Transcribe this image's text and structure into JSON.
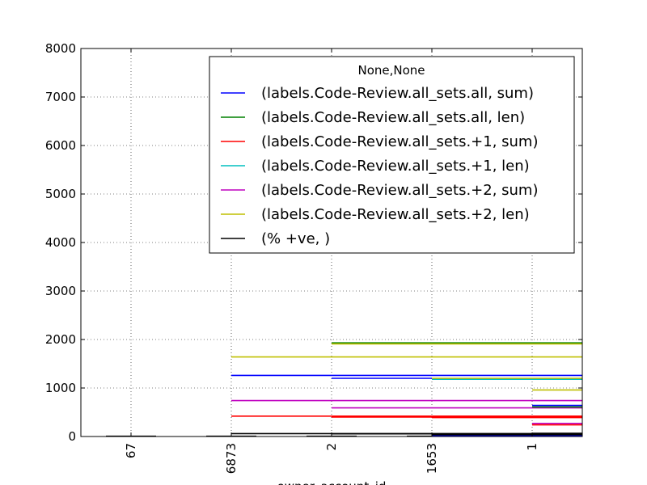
{
  "chart_data": {
    "type": "line",
    "title": "",
    "xlabel": "owner_account_id",
    "ylabel": "",
    "categories": [
      "67",
      "6873",
      "2",
      "1653",
      "1"
    ],
    "ylim": [
      0,
      8000
    ],
    "yticks": [
      "0",
      "1000",
      "2000",
      "3000",
      "4000",
      "5000",
      "6000",
      "7000",
      "8000"
    ],
    "grid": true,
    "legend": {
      "placement": "top-right",
      "title": "None,None",
      "entries": [
        {
          "label": "(labels.Code-Review.all_sets.all, sum)",
          "color": "#0000ff"
        },
        {
          "label": "(labels.Code-Review.all_sets.all, len)",
          "color": "#008000"
        },
        {
          "label": "(labels.Code-Review.all_sets.+1, sum)",
          "color": "#ff0000"
        },
        {
          "label": "(labels.Code-Review.all_sets.+1, len)",
          "color": "#00bfbf"
        },
        {
          "label": "(labels.Code-Review.all_sets.+2, sum)",
          "color": "#bf00bf"
        },
        {
          "label": "(labels.Code-Review.all_sets.+2, len)",
          "color": "#bfbf00"
        },
        {
          "label": "(% +ve, )",
          "color": "#000000"
        }
      ]
    },
    "segments": [
      {
        "color": "#000000",
        "x0": -0.25,
        "x1": 0.25,
        "y": 5
      },
      {
        "color": "#000000",
        "x0": 0.75,
        "x1": 1.25,
        "y": 5
      },
      {
        "color": "#000000",
        "x0": 1.75,
        "x1": 2.25,
        "y": 5
      },
      {
        "color": "#000000",
        "x0": 2.75,
        "x1": 3.25,
        "y": 5
      },
      {
        "color": "#0000ff",
        "x0": 1.0,
        "x1": 4.5,
        "y": 1260
      },
      {
        "color": "#bfbf00",
        "x0": 1.0,
        "x1": 4.5,
        "y": 1640
      },
      {
        "color": "#bf00bf",
        "x0": 1.0,
        "x1": 4.5,
        "y": 740
      },
      {
        "color": "#ff0000",
        "x0": 1.0,
        "x1": 4.5,
        "y": 420
      },
      {
        "color": "#000000",
        "x0": 1.0,
        "x1": 4.5,
        "y": 60
      },
      {
        "color": "#008000",
        "x0": 2.0,
        "x1": 4.5,
        "y": 1930
      },
      {
        "color": "#bfbf00",
        "x0": 2.0,
        "x1": 4.5,
        "y": 1910
      },
      {
        "color": "#0000ff",
        "x0": 2.0,
        "x1": 3.0,
        "y": 1200
      },
      {
        "color": "#bf00bf",
        "x0": 2.0,
        "x1": 4.5,
        "y": 590
      },
      {
        "color": "#ff0000",
        "x0": 2.0,
        "x1": 4.5,
        "y": 400
      },
      {
        "color": "#000000",
        "x0": 2.0,
        "x1": 4.5,
        "y": 55
      },
      {
        "color": "#00bfbf",
        "x0": 3.0,
        "x1": 4.5,
        "y": 1180
      },
      {
        "color": "#bfbf00",
        "x0": 3.0,
        "x1": 4.5,
        "y": 1200
      },
      {
        "color": "#ff0000",
        "x0": 3.0,
        "x1": 4.5,
        "y": 390
      },
      {
        "color": "#000000",
        "x0": 3.0,
        "x1": 4.5,
        "y": 30
      },
      {
        "color": "#0000ff",
        "x0": 3.0,
        "x1": 4.5,
        "y": 10
      },
      {
        "color": "#bfbf00",
        "x0": 4.0,
        "x1": 4.5,
        "y": 960
      },
      {
        "color": "#0000ff",
        "x0": 4.0,
        "x1": 4.5,
        "y": 640
      },
      {
        "color": "#008000",
        "x0": 4.0,
        "x1": 4.5,
        "y": 610
      },
      {
        "color": "#bf00bf",
        "x0": 4.0,
        "x1": 4.5,
        "y": 270
      },
      {
        "color": "#ff0000",
        "x0": 4.0,
        "x1": 4.5,
        "y": 240
      },
      {
        "color": "#000000",
        "x0": 4.0,
        "x1": 4.5,
        "y": 65
      }
    ]
  }
}
